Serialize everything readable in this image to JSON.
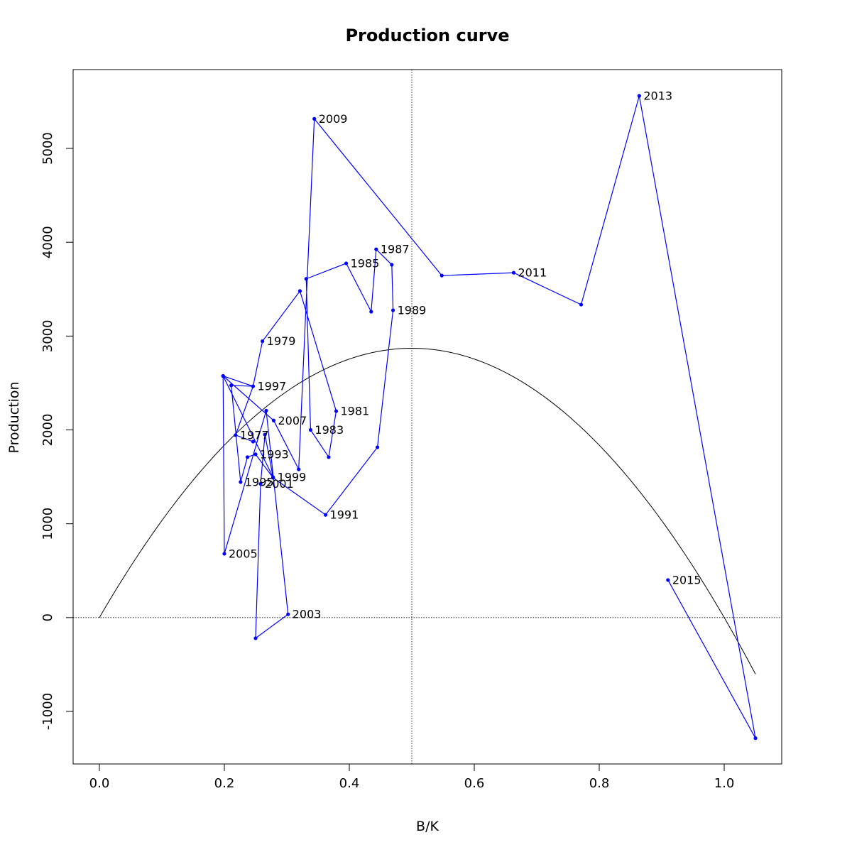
{
  "chart_data": {
    "type": "line",
    "title": "Production curve",
    "xlabel": "B/K",
    "ylabel": "Production",
    "xlim": [
      -0.042,
      1.092
    ],
    "ylim": [
      -1560,
      5840
    ],
    "x_ticks": [
      0.0,
      0.2,
      0.4,
      0.6,
      0.8,
      1.0
    ],
    "x_tick_labels": [
      "0.0",
      "0.2",
      "0.4",
      "0.6",
      "0.8",
      "1.0"
    ],
    "y_ticks": [
      -1000,
      0,
      1000,
      2000,
      3000,
      4000,
      5000
    ],
    "y_tick_labels": [
      "-1000",
      "0",
      "1000",
      "2000",
      "3000",
      "4000",
      "5000"
    ],
    "reference_lines": {
      "vertical_x": 0.5,
      "horizontal_y": 0
    },
    "series": [
      {
        "color": "#0000ff",
        "points": [
          {
            "x": 0.246,
            "y": 1875,
            "label": ""
          },
          {
            "x": 0.218,
            "y": 1945,
            "label": "1977"
          },
          {
            "x": 0.246,
            "y": 2465,
            "label": ""
          },
          {
            "x": 0.261,
            "y": 2945,
            "label": "1979"
          },
          {
            "x": 0.321,
            "y": 3480,
            "label": ""
          },
          {
            "x": 0.379,
            "y": 2200,
            "label": "1981"
          },
          {
            "x": 0.367,
            "y": 1710,
            "label": ""
          },
          {
            "x": 0.338,
            "y": 2000,
            "label": "1983"
          },
          {
            "x": 0.331,
            "y": 3610,
            "label": ""
          },
          {
            "x": 0.395,
            "y": 3775,
            "label": "1985"
          },
          {
            "x": 0.435,
            "y": 3260,
            "label": ""
          },
          {
            "x": 0.443,
            "y": 3925,
            "label": "1987"
          },
          {
            "x": 0.468,
            "y": 3760,
            "label": ""
          },
          {
            "x": 0.47,
            "y": 3275,
            "label": "1989"
          },
          {
            "x": 0.445,
            "y": 1815,
            "label": ""
          },
          {
            "x": 0.362,
            "y": 1095,
            "label": "1991"
          },
          {
            "x": 0.278,
            "y": 1490,
            "label": ""
          },
          {
            "x": 0.25,
            "y": 1740,
            "label": "1993"
          },
          {
            "x": 0.237,
            "y": 1710,
            "label": ""
          },
          {
            "x": 0.226,
            "y": 1445,
            "label": "1995"
          },
          {
            "x": 0.211,
            "y": 2475,
            "label": ""
          },
          {
            "x": 0.246,
            "y": 2465,
            "label": "1997"
          },
          {
            "x": 0.198,
            "y": 2575,
            "label": ""
          },
          {
            "x": 0.278,
            "y": 1495,
            "label": "1999"
          },
          {
            "x": 0.265,
            "y": 1950,
            "label": ""
          },
          {
            "x": 0.258,
            "y": 1425,
            "label": "2001"
          },
          {
            "x": 0.25,
            "y": -220,
            "label": ""
          },
          {
            "x": 0.302,
            "y": 35,
            "label": "2003"
          },
          {
            "x": 0.267,
            "y": 2205,
            "label": ""
          },
          {
            "x": 0.2,
            "y": 680,
            "label": "2005"
          },
          {
            "x": 0.198,
            "y": 2575,
            "label": ""
          },
          {
            "x": 0.279,
            "y": 2100,
            "label": "2007"
          },
          {
            "x": 0.319,
            "y": 1580,
            "label": ""
          },
          {
            "x": 0.344,
            "y": 5315,
            "label": "2009"
          },
          {
            "x": 0.548,
            "y": 3645,
            "label": ""
          },
          {
            "x": 0.663,
            "y": 3675,
            "label": "2011"
          },
          {
            "x": 0.771,
            "y": 3335,
            "label": ""
          },
          {
            "x": 0.864,
            "y": 5560,
            "label": "2013"
          },
          {
            "x": 1.05,
            "y": -1285,
            "label": ""
          },
          {
            "x": 0.91,
            "y": 400,
            "label": "2015"
          }
        ]
      }
    ],
    "curve": {
      "color": "#000000",
      "x_start": 0.0,
      "x_end": 1.05,
      "peak_x": 0.5,
      "peak_y": 2870
    }
  }
}
